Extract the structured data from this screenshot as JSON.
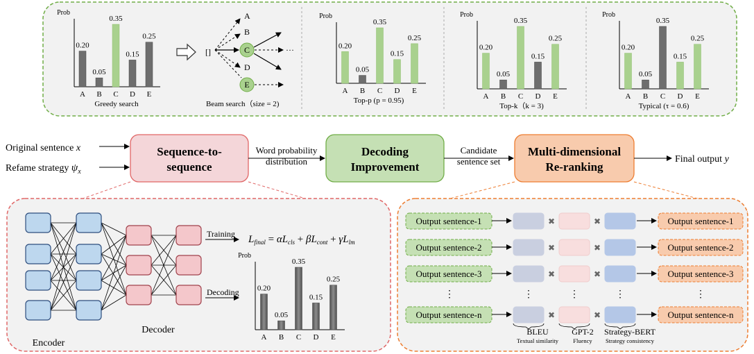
{
  "colors": {
    "green_bar": "#a9d18e",
    "gray_bar": "#6e6e6e",
    "top_panel_border": "#70ad47",
    "top_panel_fill": "#f2f2f2",
    "seq_box": "#f4d6d9",
    "seq_border": "#e06666",
    "dec_box": "#c5e0b4",
    "dec_border": "#70ad47",
    "rerank_box": "#f8cbad",
    "rerank_border": "#ed7d31",
    "encoder_node": "#bdd7ee",
    "decoder_node": "#f4c7cb",
    "bleu_fill": "#c9cfe0",
    "gpt2_fill": "#f8dede",
    "sbert_fill": "#b4c7e7"
  },
  "top_charts": {
    "prob_label": "Prob",
    "categories": [
      "A",
      "B",
      "C",
      "D",
      "E"
    ],
    "values": [
      0.2,
      0.05,
      0.35,
      0.15,
      0.25
    ],
    "value_labels": [
      "0.20",
      "0.05",
      "0.35",
      "0.15",
      "0.25"
    ],
    "greedy": {
      "caption": "Greedy search",
      "highlight": [
        false,
        false,
        true,
        false,
        false
      ]
    },
    "beam": {
      "caption": "Beam search（size = 2)",
      "start": "[]",
      "nodes": [
        "A",
        "B",
        "C",
        "D",
        "E"
      ],
      "ellipsis": "···"
    },
    "topp": {
      "caption": "Top-p (p = 0.95)",
      "highlight": [
        true,
        false,
        true,
        true,
        true
      ]
    },
    "topk": {
      "caption": "Top-k（k = 3)",
      "highlight": [
        true,
        false,
        true,
        false,
        true
      ]
    },
    "typical": {
      "caption": "Typical (τ = 0.6)",
      "highlight": [
        true,
        false,
        false,
        true,
        true
      ]
    }
  },
  "pipeline": {
    "input1_prefix": "Original sentence",
    "input1_var": "x",
    "input2_prefix": "Refame strategy",
    "input2_var": "ψ",
    "input2_sub": "x",
    "seq_box_line1": "Sequence-to-",
    "seq_box_line2": "sequence",
    "edge1_line1": "Word probability",
    "edge1_line2": "distribution",
    "dec_box_line1": "Decoding",
    "dec_box_line2": "Improvement",
    "edge2_line1": "Candidate",
    "edge2_line2": "sentence set",
    "rerank_line1": "Multi-dimensional",
    "rerank_line2": "Re-ranking",
    "output_prefix": "Final output",
    "output_var": "y"
  },
  "seq_panel": {
    "encoder_label": "Encoder",
    "decoder_label": "Decoder",
    "training_label": "Training",
    "decoding_label": "Decoding",
    "formula": {
      "lhs": "L",
      "lhs_sub": "final",
      "t1_coef": "α",
      "t1": "L",
      "t1_sub": "cls",
      "t2_coef": "β",
      "t2": "L",
      "t2_sub": "cont",
      "t3_coef": "γ",
      "t3": "L",
      "t3_sub": "lm"
    },
    "chart": {
      "prob_label": "Prob",
      "categories": [
        "A",
        "B",
        "C",
        "D",
        "E"
      ],
      "values": [
        0.2,
        0.05,
        0.35,
        0.15,
        0.25
      ],
      "value_labels": [
        "0.20",
        "0.05",
        "0.35",
        "0.15",
        "0.25"
      ]
    }
  },
  "rerank_panel": {
    "inputs": [
      "Output sentence-1",
      "Output sentence-2",
      "Output sentence-3",
      "Output sentence-n"
    ],
    "outputs": [
      "Output sentence-1",
      "Output sentence-2",
      "Output sentence-3",
      "Output sentence-n"
    ],
    "dots": "⋮",
    "times": "✖",
    "metrics": [
      {
        "name": "BLEU",
        "desc": "Textual similarity"
      },
      {
        "name": "GPT-2",
        "desc": "Fluency"
      },
      {
        "name": "Strategy-BERT",
        "desc": "Strategy consistency"
      }
    ]
  }
}
